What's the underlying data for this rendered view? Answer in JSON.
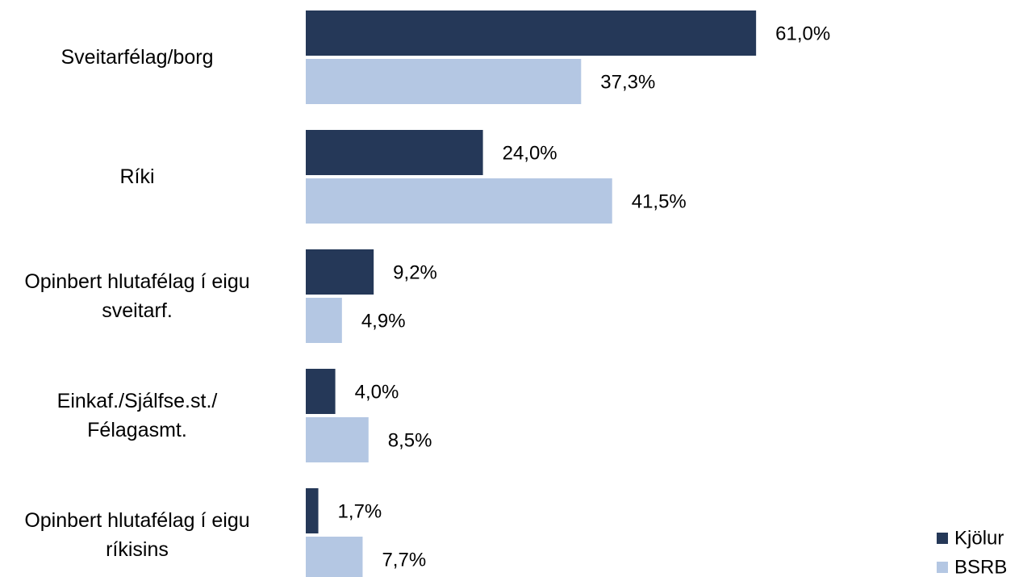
{
  "chart_data": {
    "type": "barh",
    "categories": [
      "Sveitarfélag/borg",
      "Ríki",
      "Opinbert hlutafélag í eigu\nsveitarf.",
      "Einkaf./Sjálfse.st./\nFélagasmt.",
      "Opinbert hlutafélag í eigu\nríkisins"
    ],
    "series": [
      {
        "name": "Kjölur",
        "color": "#253858",
        "values": [
          61.0,
          24.0,
          9.2,
          4.0,
          1.7
        ],
        "value_labels": [
          "61,0%",
          "24,0%",
          "9,2%",
          "4,0%",
          "1,7%"
        ]
      },
      {
        "name": "BSRB",
        "color": "#b4c7e3",
        "values": [
          37.3,
          41.5,
          4.9,
          8.5,
          7.7
        ],
        "value_labels": [
          "37,3%",
          "41,5%",
          "4,9%",
          "8,5%",
          "7,7%"
        ]
      }
    ],
    "legend": "lower right"
  }
}
